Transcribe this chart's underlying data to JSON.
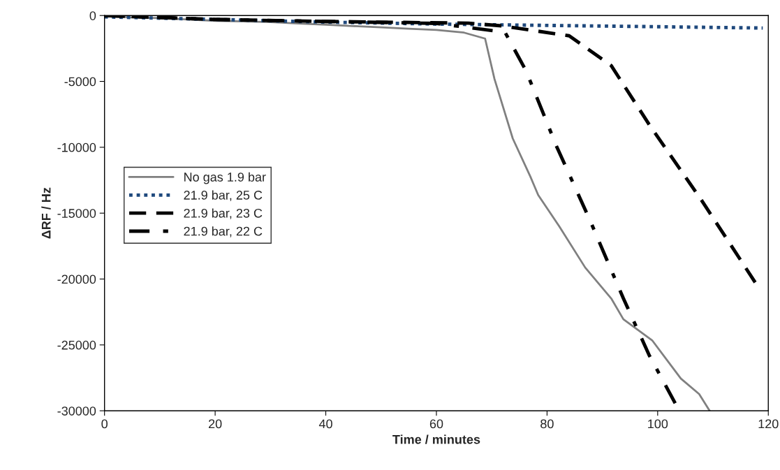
{
  "chart_data": {
    "type": "line",
    "xlabel": "Time / minutes",
    "ylabel": "ΔRF / Hz",
    "xlim": [
      0,
      120
    ],
    "xticks": [
      0,
      20,
      40,
      60,
      80,
      100,
      120
    ],
    "ylim": [
      -30000,
      0
    ],
    "yticks": [
      -30000,
      -25000,
      -20000,
      -15000,
      -10000,
      -5000,
      0
    ],
    "grid": false,
    "legend": "left",
    "marker": "none",
    "series": [
      {
        "name": "No gas 1.9 bar",
        "color": "#808080",
        "line_style": "solid",
        "x": [
          0,
          5,
          10,
          15,
          20,
          25,
          30,
          35,
          40,
          45,
          50,
          55,
          60,
          65,
          68.8,
          70.5,
          73.8,
          77.0,
          78.4,
          82.2,
          86.9,
          91.6,
          93.8,
          99.0,
          104.2,
          107.5,
          109.4
        ],
        "values": [
          0,
          -150,
          -200,
          -300,
          -400,
          -450,
          -500,
          -600,
          -700,
          -800,
          -900,
          -1000,
          -1100,
          -1300,
          -1750,
          -4820,
          -9330,
          -12240,
          -13620,
          -16000,
          -19130,
          -21470,
          -23050,
          -24650,
          -27560,
          -28730,
          -30000
        ]
      },
      {
        "name": "21.9 bar, 25 C",
        "color": "#1f497d",
        "line_style": "dotted",
        "x": [
          0,
          20,
          40,
          60,
          80,
          100,
          119
        ],
        "values": [
          -100,
          -300,
          -500,
          -650,
          -750,
          -850,
          -950
        ]
      },
      {
        "name": "21.9 bar, 23 C",
        "color": "#000000",
        "line_style": "dashed",
        "x": [
          0,
          20,
          40,
          65.8,
          71.9,
          84,
          91.6,
          98.5,
          107.9,
          117.7
        ],
        "values": [
          0,
          -300,
          -450,
          -580,
          -790,
          -1540,
          -3800,
          -8300,
          -14000,
          -20300
        ]
      },
      {
        "name": "21.9 bar, 22 C",
        "color": "#000000",
        "line_style": "dashdot",
        "x": [
          0,
          20,
          40,
          60,
          72.4,
          76.2,
          81.7,
          87.8,
          93.8,
          98.5,
          103.7
        ],
        "values": [
          0,
          -300,
          -450,
          -600,
          -1270,
          -4190,
          -9910,
          -15580,
          -21470,
          -25810,
          -29840
        ]
      }
    ]
  }
}
